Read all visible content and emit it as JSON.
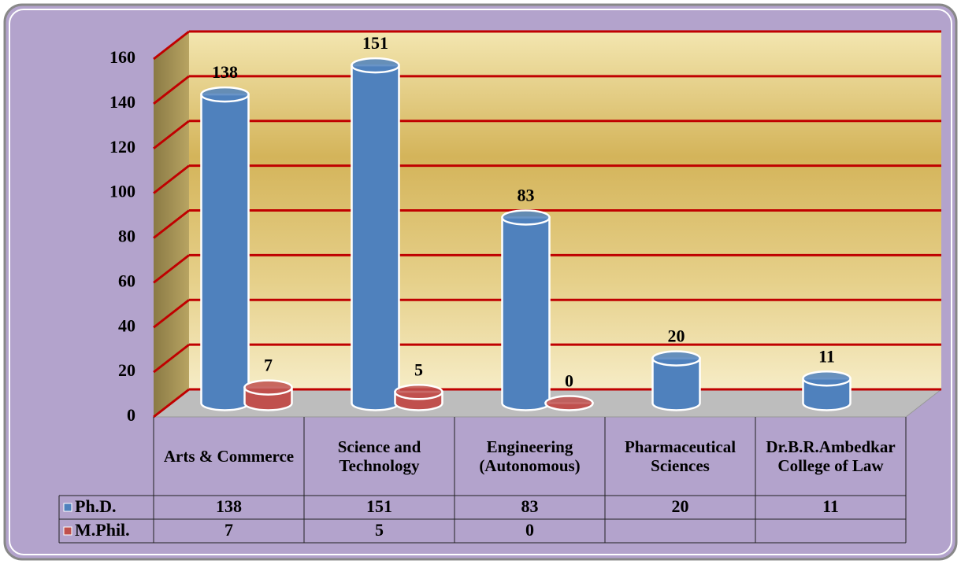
{
  "chart_data": {
    "type": "bar",
    "categories": [
      "Arts & Commerce",
      "Science and Technology",
      "Engineering (Autonomous)",
      "Pharmaceutical Sciences",
      "Dr.B.R.Ambedkar College of Law"
    ],
    "series": [
      {
        "name": "Ph.D.",
        "color": "#4f81bd",
        "values": [
          138,
          151,
          83,
          20,
          11
        ]
      },
      {
        "name": "M.Phil.",
        "color": "#c0504d",
        "values": [
          7,
          5,
          0,
          null,
          null
        ]
      }
    ],
    "ylim": [
      0,
      160
    ],
    "yticks": [
      0,
      20,
      40,
      60,
      80,
      100,
      120,
      140,
      160
    ],
    "grid": true,
    "grid_color": "#c00000"
  }
}
